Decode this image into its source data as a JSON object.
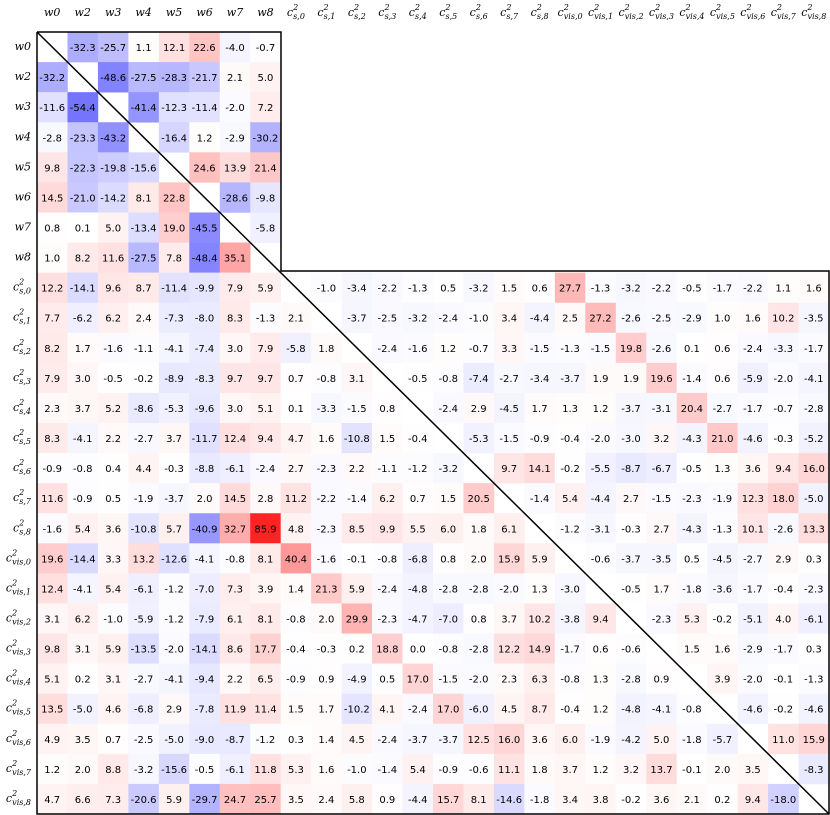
{
  "chart_data": {
    "type": "heatmap",
    "colormap": "bwr",
    "clim": [
      -100,
      100
    ],
    "decimals": 1,
    "labels": [
      "w0",
      "w2",
      "w3",
      "w4",
      "w5",
      "w6",
      "w7",
      "w8",
      {
        "base": "c",
        "sup": "2",
        "sub": "s,0"
      },
      {
        "base": "c",
        "sup": "2",
        "sub": "s,1"
      },
      {
        "base": "c",
        "sup": "2",
        "sub": "s,2"
      },
      {
        "base": "c",
        "sup": "2",
        "sub": "s,3"
      },
      {
        "base": "c",
        "sup": "2",
        "sub": "s,4"
      },
      {
        "base": "c",
        "sup": "2",
        "sub": "s,5"
      },
      {
        "base": "c",
        "sup": "2",
        "sub": "s,6"
      },
      {
        "base": "c",
        "sup": "2",
        "sub": "s,7"
      },
      {
        "base": "c",
        "sup": "2",
        "sub": "s,8"
      },
      {
        "base": "c",
        "sup": "2",
        "sub": "vis,0"
      },
      {
        "base": "c",
        "sup": "2",
        "sub": "vis,1"
      },
      {
        "base": "c",
        "sup": "2",
        "sub": "vis,2"
      },
      {
        "base": "c",
        "sup": "2",
        "sub": "vis,3"
      },
      {
        "base": "c",
        "sup": "2",
        "sub": "vis,4"
      },
      {
        "base": "c",
        "sup": "2",
        "sub": "vis,5"
      },
      {
        "base": "c",
        "sup": "2",
        "sub": "vis,6"
      },
      {
        "base": "c",
        "sup": "2",
        "sub": "vis,7"
      },
      {
        "base": "c",
        "sup": "2",
        "sub": "vis,8"
      }
    ],
    "matrix": [
      [
        null,
        -32.3,
        -25.7,
        1.1,
        12.1,
        22.6,
        -4.0,
        -0.7
      ],
      [
        -32.2,
        null,
        -48.6,
        -27.5,
        -28.3,
        -21.7,
        2.1,
        5.0
      ],
      [
        -11.6,
        -54.4,
        null,
        -41.4,
        -12.3,
        -11.4,
        -2.0,
        7.2
      ],
      [
        -2.8,
        -23.3,
        -43.2,
        null,
        -16.4,
        1.2,
        -2.9,
        -30.2
      ],
      [
        9.8,
        -22.3,
        -19.8,
        -15.6,
        null,
        24.6,
        13.9,
        21.4
      ],
      [
        14.5,
        -21.0,
        -14.2,
        8.1,
        22.8,
        null,
        -28.6,
        -9.8
      ],
      [
        0.8,
        0.1,
        5.0,
        -13.4,
        19.0,
        -45.5,
        null,
        -5.8
      ],
      [
        1.0,
        8.2,
        11.6,
        -27.5,
        7.8,
        -48.4,
        35.1,
        null
      ],
      [
        12.2,
        -14.1,
        9.6,
        8.7,
        -11.4,
        -9.9,
        7.9,
        5.9,
        null,
        -1.0,
        -3.4,
        -2.2,
        -1.3,
        0.5,
        -3.2,
        1.5,
        0.6,
        27.7,
        -1.3,
        -3.2,
        -2.2,
        -0.5,
        -1.7,
        -2.2,
        1.1,
        1.6
      ],
      [
        7.7,
        -6.2,
        6.2,
        2.4,
        -7.3,
        -8.0,
        8.3,
        -1.3,
        2.1,
        null,
        -3.7,
        -2.5,
        -3.2,
        -2.4,
        -1.0,
        3.4,
        -4.4,
        2.5,
        27.2,
        -2.6,
        -2.5,
        -2.9,
        1.0,
        1.6,
        10.2,
        -3.5
      ],
      [
        8.2,
        1.7,
        -1.6,
        -1.1,
        -4.1,
        -7.4,
        3.0,
        7.9,
        -5.8,
        1.8,
        null,
        -2.4,
        -1.6,
        1.2,
        -0.7,
        3.3,
        -1.5,
        -1.3,
        -1.5,
        19.8,
        -2.6,
        0.1,
        0.6,
        -2.4,
        -3.3,
        -1.7
      ],
      [
        7.9,
        3.0,
        -0.5,
        -0.2,
        -8.9,
        -8.3,
        9.7,
        9.7,
        0.7,
        -0.8,
        3.1,
        null,
        -0.5,
        -0.8,
        -7.4,
        -2.7,
        -3.4,
        -3.7,
        1.9,
        1.9,
        19.6,
        -1.4,
        0.6,
        -5.9,
        -2.0,
        -4.1
      ],
      [
        2.3,
        3.7,
        5.2,
        -8.6,
        -5.3,
        -9.6,
        3.0,
        5.1,
        0.1,
        -3.3,
        -1.5,
        0.8,
        null,
        -2.4,
        2.9,
        -4.5,
        1.7,
        1.3,
        1.2,
        -3.7,
        -3.1,
        20.4,
        -2.7,
        -1.7,
        -0.7,
        -2.8
      ],
      [
        8.3,
        -4.1,
        2.2,
        -2.7,
        3.7,
        -11.7,
        12.4,
        9.4,
        4.7,
        1.6,
        -10.8,
        1.5,
        -0.4,
        null,
        -5.3,
        -1.5,
        -0.9,
        -0.4,
        -2.0,
        -3.0,
        3.2,
        -4.3,
        21.0,
        -4.6,
        -0.3,
        -5.2
      ],
      [
        -0.9,
        -0.8,
        0.4,
        4.4,
        -0.3,
        -8.8,
        -6.1,
        -2.4,
        2.7,
        -2.3,
        2.2,
        -1.1,
        -1.2,
        -3.2,
        null,
        9.7,
        14.1,
        -0.2,
        -5.5,
        -8.7,
        -6.7,
        -0.5,
        1.3,
        3.6,
        9.4,
        16.0
      ],
      [
        11.6,
        -0.9,
        0.5,
        -1.9,
        -3.7,
        2.0,
        14.5,
        2.8,
        11.2,
        -2.2,
        -1.4,
        6.2,
        0.7,
        1.5,
        20.5,
        null,
        -1.4,
        5.4,
        -4.4,
        2.7,
        -1.5,
        -2.3,
        -1.9,
        12.3,
        18.0,
        -5.0
      ],
      [
        -1.6,
        5.4,
        3.6,
        -10.8,
        5.7,
        -40.9,
        32.7,
        85.9,
        4.8,
        -2.3,
        8.5,
        9.9,
        5.5,
        6.0,
        1.8,
        6.1,
        null,
        -1.2,
        -3.1,
        -0.3,
        2.7,
        -4.3,
        -1.3,
        10.1,
        -2.6,
        13.3
      ],
      [
        19.6,
        -14.4,
        3.3,
        13.2,
        -12.6,
        -4.1,
        -0.8,
        8.1,
        40.4,
        -1.6,
        -0.1,
        -0.8,
        -6.8,
        0.8,
        2.0,
        15.9,
        5.9,
        null,
        -0.6,
        -3.7,
        -3.5,
        0.5,
        -4.5,
        -2.7,
        2.9,
        0.3
      ],
      [
        12.4,
        -4.1,
        5.4,
        -6.1,
        -1.2,
        -7.0,
        7.3,
        3.9,
        1.4,
        21.3,
        5.9,
        -2.4,
        -4.8,
        -2.8,
        -2.8,
        -2.0,
        1.3,
        -3.0,
        null,
        -0.5,
        1.7,
        -1.8,
        -3.6,
        -1.7,
        -0.4,
        -2.3
      ],
      [
        3.1,
        6.2,
        -1.0,
        -5.9,
        -1.2,
        -7.9,
        6.1,
        8.1,
        -0.8,
        2.0,
        29.9,
        -2.3,
        -4.7,
        -7.0,
        0.8,
        3.7,
        10.2,
        -3.8,
        9.4,
        null,
        -2.3,
        5.3,
        -0.2,
        -5.1,
        4.0,
        -6.1
      ],
      [
        9.8,
        3.1,
        5.9,
        -13.5,
        -2.0,
        -14.1,
        8.6,
        17.7,
        -0.4,
        -0.3,
        0.2,
        18.8,
        0.0,
        -0.8,
        -2.8,
        12.2,
        14.9,
        -1.7,
        0.6,
        -0.6,
        null,
        1.5,
        1.6,
        -2.9,
        -1.7,
        0.3
      ],
      [
        5.1,
        0.2,
        3.1,
        -2.7,
        -4.1,
        -9.4,
        2.2,
        6.5,
        -0.9,
        0.9,
        -4.9,
        0.5,
        17.0,
        -1.5,
        -2.0,
        2.3,
        6.3,
        -0.8,
        1.3,
        -2.8,
        0.9,
        null,
        3.9,
        -2.0,
        -0.1,
        -1.3
      ],
      [
        13.5,
        -5.0,
        4.6,
        -6.8,
        2.9,
        -7.8,
        11.9,
        11.4,
        1.5,
        1.7,
        -10.2,
        4.1,
        -2.4,
        17.0,
        -6.0,
        4.5,
        8.7,
        -0.4,
        1.2,
        -4.8,
        -4.1,
        -0.8,
        null,
        -4.6,
        -0.2,
        -4.6
      ],
      [
        4.9,
        3.5,
        0.7,
        -2.5,
        -5.0,
        -9.0,
        -8.7,
        -1.2,
        0.3,
        1.4,
        4.5,
        -2.4,
        -3.7,
        -3.7,
        12.5,
        16.0,
        3.6,
        6.0,
        -1.9,
        -4.2,
        5.0,
        -1.8,
        -5.7,
        null,
        11.0,
        15.9
      ],
      [
        1.2,
        2.0,
        8.8,
        -3.2,
        -15.6,
        -0.5,
        -6.1,
        11.8,
        5.3,
        1.6,
        -1.0,
        -1.4,
        5.4,
        -0.9,
        -0.6,
        11.1,
        1.8,
        3.7,
        1.2,
        3.2,
        13.7,
        -0.1,
        2.0,
        3.5,
        null,
        -8.3
      ],
      [
        4.7,
        6.6,
        7.3,
        -20.6,
        5.9,
        -29.7,
        24.7,
        25.7,
        3.5,
        2.4,
        5.8,
        0.9,
        -4.4,
        15.7,
        8.1,
        -14.6,
        -1.8,
        3.4,
        3.8,
        -0.2,
        3.6,
        2.1,
        0.2,
        9.4,
        -18.0,
        null
      ]
    ]
  }
}
